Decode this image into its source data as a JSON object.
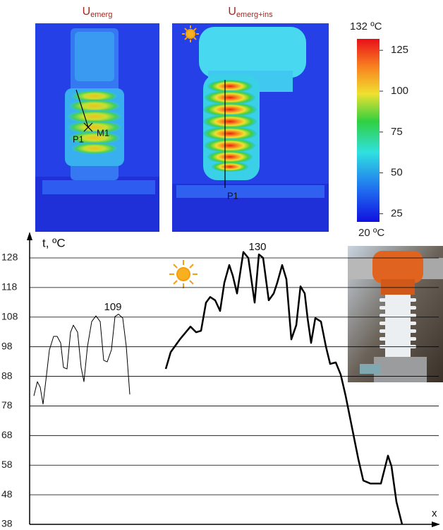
{
  "thermal_images": [
    {
      "title_main": "U",
      "title_sub": "emerg",
      "labels": [
        "P1",
        "M1"
      ]
    },
    {
      "title_main": "U",
      "title_sub": "emerg+ins",
      "labels": [
        "P1"
      ]
    }
  ],
  "colorbar": {
    "lim": [
      20,
      132
    ],
    "ticks": [
      25,
      50,
      75,
      100,
      125
    ],
    "top_label": "132 ºC",
    "bottom_label": "20 ºC"
  },
  "chart_data": {
    "type": "line",
    "ylabel": "t, ºC",
    "xlabel": "x",
    "ylim": [
      38,
      128
    ],
    "yticks": [
      38,
      48,
      58,
      68,
      78,
      88,
      98,
      108,
      118,
      128
    ],
    "grid": true,
    "xlim": [
      0,
      580
    ],
    "series": [
      {
        "color": "#000000",
        "width": 1,
        "x": [
          6,
          11,
          15,
          19,
          24,
          28,
          34,
          39,
          44,
          48,
          53,
          58,
          62,
          68,
          73,
          77,
          82,
          88,
          94,
          100,
          105,
          110,
          116,
          121,
          126,
          132,
          137,
          142
        ],
        "values": [
          81.4,
          86.2,
          84.3,
          78.6,
          88.6,
          96.9,
          101.5,
          101.5,
          99.3,
          91,
          90.5,
          102.9,
          105.3,
          102.9,
          91,
          86.2,
          98.1,
          106.5,
          108.4,
          106.5,
          93.4,
          92.9,
          97,
          108.2,
          109,
          107.7,
          98.1,
          81.9
        ]
      },
      {
        "color": "#000000",
        "width": 2.5,
        "x": [
          193,
          200,
          213,
          228,
          236,
          243,
          250,
          256,
          263,
          270,
          276,
          283,
          288,
          294,
          303,
          310,
          319,
          325,
          331,
          339,
          346,
          351,
          358,
          364,
          371,
          378,
          384,
          390,
          394,
          399,
          405,
          413,
          420,
          426,
          434,
          441,
          448,
          458,
          466,
          473,
          483,
          498,
          508,
          513,
          520,
          528
        ],
        "values": [
          90.5,
          96.2,
          100.5,
          104.8,
          102.9,
          103.4,
          112.9,
          114.8,
          113.7,
          110.1,
          119.6,
          125.6,
          122,
          116,
          130,
          128,
          112.9,
          129.2,
          128,
          113.7,
          116,
          119.6,
          125.6,
          120.8,
          100.5,
          105.3,
          118.4,
          116,
          107.7,
          99.3,
          107.7,
          106.5,
          98.1,
          92.2,
          92.7,
          88.6,
          81.4,
          69.5,
          60,
          52.8,
          51.8,
          51.8,
          61.2,
          57.6,
          45.6,
          38
        ]
      }
    ],
    "annotations": [
      "109",
      "130"
    ]
  }
}
